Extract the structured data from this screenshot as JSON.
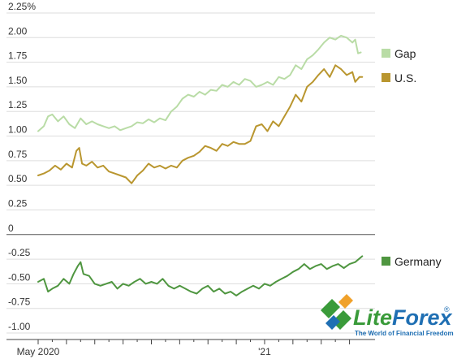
{
  "chart_data": {
    "type": "line",
    "y_unit_suffix": "%",
    "ylim": [
      -1.0,
      2.25
    ],
    "y_ticks": [
      {
        "value": 2.25,
        "label": "2.25%"
      },
      {
        "value": 2.0,
        "label": "2.00"
      },
      {
        "value": 1.75,
        "label": "1.75"
      },
      {
        "value": 1.5,
        "label": "1.50"
      },
      {
        "value": 1.25,
        "label": "1.25"
      },
      {
        "value": 1.0,
        "label": "1.00"
      },
      {
        "value": 0.75,
        "label": "0.75"
      },
      {
        "value": 0.5,
        "label": "0.50"
      },
      {
        "value": 0.25,
        "label": "0.25"
      },
      {
        "value": 0.0,
        "label": "0"
      },
      {
        "value": -0.25,
        "label": "-0.25"
      },
      {
        "value": -0.5,
        "label": "-0.50"
      },
      {
        "value": -0.75,
        "label": "-0.75"
      },
      {
        "value": -1.0,
        "label": "-1.00"
      }
    ],
    "x_ticks": [
      {
        "month": 0,
        "label": "May 2020"
      },
      {
        "month": 8,
        "label": "'21"
      }
    ],
    "x_range_months": [
      0,
      11.7
    ],
    "grid": "horizontal",
    "legend_placement": "right",
    "series": [
      {
        "name": "Gap",
        "color": "#b9dca6",
        "points": [
          [
            0.0,
            1.05
          ],
          [
            0.2,
            1.1
          ],
          [
            0.35,
            1.2
          ],
          [
            0.5,
            1.22
          ],
          [
            0.7,
            1.15
          ],
          [
            0.9,
            1.2
          ],
          [
            1.1,
            1.12
          ],
          [
            1.3,
            1.08
          ],
          [
            1.5,
            1.18
          ],
          [
            1.7,
            1.12
          ],
          [
            1.9,
            1.15
          ],
          [
            2.1,
            1.12
          ],
          [
            2.3,
            1.1
          ],
          [
            2.5,
            1.08
          ],
          [
            2.7,
            1.1
          ],
          [
            2.9,
            1.06
          ],
          [
            3.1,
            1.08
          ],
          [
            3.3,
            1.1
          ],
          [
            3.5,
            1.14
          ],
          [
            3.7,
            1.13
          ],
          [
            3.9,
            1.17
          ],
          [
            4.1,
            1.14
          ],
          [
            4.3,
            1.18
          ],
          [
            4.5,
            1.16
          ],
          [
            4.7,
            1.25
          ],
          [
            4.9,
            1.3
          ],
          [
            5.1,
            1.38
          ],
          [
            5.3,
            1.42
          ],
          [
            5.5,
            1.4
          ],
          [
            5.7,
            1.45
          ],
          [
            5.9,
            1.42
          ],
          [
            6.1,
            1.47
          ],
          [
            6.3,
            1.46
          ],
          [
            6.5,
            1.52
          ],
          [
            6.7,
            1.5
          ],
          [
            6.9,
            1.55
          ],
          [
            7.1,
            1.52
          ],
          [
            7.3,
            1.58
          ],
          [
            7.5,
            1.56
          ],
          [
            7.7,
            1.5
          ],
          [
            7.9,
            1.52
          ],
          [
            8.1,
            1.55
          ],
          [
            8.3,
            1.52
          ],
          [
            8.5,
            1.6
          ],
          [
            8.7,
            1.58
          ],
          [
            8.9,
            1.62
          ],
          [
            9.1,
            1.72
          ],
          [
            9.3,
            1.68
          ],
          [
            9.5,
            1.78
          ],
          [
            9.7,
            1.82
          ],
          [
            9.9,
            1.88
          ],
          [
            10.1,
            1.95
          ],
          [
            10.3,
            2.0
          ],
          [
            10.5,
            1.98
          ],
          [
            10.7,
            2.02
          ],
          [
            10.9,
            2.0
          ],
          [
            11.1,
            1.95
          ],
          [
            11.2,
            1.98
          ],
          [
            11.3,
            1.84
          ],
          [
            11.4,
            1.85
          ]
        ]
      },
      {
        "name": "U.S.",
        "color": "#b9962f",
        "points": [
          [
            0.0,
            0.6
          ],
          [
            0.2,
            0.62
          ],
          [
            0.4,
            0.65
          ],
          [
            0.6,
            0.7
          ],
          [
            0.8,
            0.66
          ],
          [
            1.0,
            0.72
          ],
          [
            1.2,
            0.68
          ],
          [
            1.35,
            0.85
          ],
          [
            1.45,
            0.88
          ],
          [
            1.55,
            0.72
          ],
          [
            1.7,
            0.7
          ],
          [
            1.9,
            0.74
          ],
          [
            2.1,
            0.68
          ],
          [
            2.3,
            0.7
          ],
          [
            2.5,
            0.64
          ],
          [
            2.7,
            0.62
          ],
          [
            2.9,
            0.6
          ],
          [
            3.1,
            0.58
          ],
          [
            3.3,
            0.52
          ],
          [
            3.5,
            0.6
          ],
          [
            3.7,
            0.65
          ],
          [
            3.9,
            0.72
          ],
          [
            4.1,
            0.68
          ],
          [
            4.3,
            0.7
          ],
          [
            4.5,
            0.67
          ],
          [
            4.7,
            0.7
          ],
          [
            4.9,
            0.68
          ],
          [
            5.1,
            0.75
          ],
          [
            5.3,
            0.78
          ],
          [
            5.5,
            0.8
          ],
          [
            5.7,
            0.84
          ],
          [
            5.9,
            0.9
          ],
          [
            6.1,
            0.88
          ],
          [
            6.3,
            0.85
          ],
          [
            6.5,
            0.92
          ],
          [
            6.7,
            0.9
          ],
          [
            6.9,
            0.94
          ],
          [
            7.1,
            0.92
          ],
          [
            7.3,
            0.92
          ],
          [
            7.5,
            0.95
          ],
          [
            7.7,
            1.1
          ],
          [
            7.9,
            1.12
          ],
          [
            8.1,
            1.05
          ],
          [
            8.3,
            1.15
          ],
          [
            8.5,
            1.1
          ],
          [
            8.7,
            1.2
          ],
          [
            8.9,
            1.3
          ],
          [
            9.1,
            1.42
          ],
          [
            9.3,
            1.35
          ],
          [
            9.5,
            1.5
          ],
          [
            9.7,
            1.55
          ],
          [
            9.9,
            1.62
          ],
          [
            10.1,
            1.68
          ],
          [
            10.3,
            1.6
          ],
          [
            10.5,
            1.72
          ],
          [
            10.7,
            1.68
          ],
          [
            10.9,
            1.62
          ],
          [
            11.1,
            1.65
          ],
          [
            11.2,
            1.55
          ],
          [
            11.35,
            1.6
          ],
          [
            11.45,
            1.6
          ]
        ]
      },
      {
        "name": "Germany",
        "color": "#4f9640",
        "points": [
          [
            0.0,
            -0.48
          ],
          [
            0.2,
            -0.45
          ],
          [
            0.35,
            -0.58
          ],
          [
            0.5,
            -0.55
          ],
          [
            0.7,
            -0.52
          ],
          [
            0.9,
            -0.45
          ],
          [
            1.1,
            -0.5
          ],
          [
            1.25,
            -0.4
          ],
          [
            1.4,
            -0.32
          ],
          [
            1.5,
            -0.28
          ],
          [
            1.6,
            -0.4
          ],
          [
            1.8,
            -0.42
          ],
          [
            2.0,
            -0.5
          ],
          [
            2.2,
            -0.52
          ],
          [
            2.4,
            -0.5
          ],
          [
            2.6,
            -0.48
          ],
          [
            2.8,
            -0.55
          ],
          [
            3.0,
            -0.5
          ],
          [
            3.2,
            -0.52
          ],
          [
            3.4,
            -0.48
          ],
          [
            3.6,
            -0.45
          ],
          [
            3.8,
            -0.5
          ],
          [
            4.0,
            -0.48
          ],
          [
            4.2,
            -0.5
          ],
          [
            4.4,
            -0.45
          ],
          [
            4.6,
            -0.52
          ],
          [
            4.8,
            -0.55
          ],
          [
            5.0,
            -0.52
          ],
          [
            5.2,
            -0.55
          ],
          [
            5.4,
            -0.58
          ],
          [
            5.6,
            -0.6
          ],
          [
            5.8,
            -0.55
          ],
          [
            6.0,
            -0.52
          ],
          [
            6.2,
            -0.58
          ],
          [
            6.4,
            -0.55
          ],
          [
            6.6,
            -0.6
          ],
          [
            6.8,
            -0.58
          ],
          [
            7.0,
            -0.62
          ],
          [
            7.2,
            -0.58
          ],
          [
            7.4,
            -0.55
          ],
          [
            7.6,
            -0.52
          ],
          [
            7.8,
            -0.55
          ],
          [
            8.0,
            -0.5
          ],
          [
            8.2,
            -0.52
          ],
          [
            8.4,
            -0.48
          ],
          [
            8.6,
            -0.45
          ],
          [
            8.8,
            -0.42
          ],
          [
            9.0,
            -0.38
          ],
          [
            9.2,
            -0.35
          ],
          [
            9.4,
            -0.3
          ],
          [
            9.6,
            -0.35
          ],
          [
            9.8,
            -0.32
          ],
          [
            10.0,
            -0.3
          ],
          [
            10.2,
            -0.35
          ],
          [
            10.4,
            -0.32
          ],
          [
            10.6,
            -0.3
          ],
          [
            10.8,
            -0.34
          ],
          [
            11.0,
            -0.3
          ],
          [
            11.2,
            -0.28
          ],
          [
            11.45,
            -0.22
          ]
        ]
      }
    ]
  },
  "logo": {
    "name_part1": "Lite",
    "name_part2": "Forex",
    "registered": "®",
    "tagline": "The World of Financial Freedom",
    "color_green": "#3a9b3a",
    "color_blue": "#1f6fb3",
    "color_orange": "#f0a12a"
  }
}
